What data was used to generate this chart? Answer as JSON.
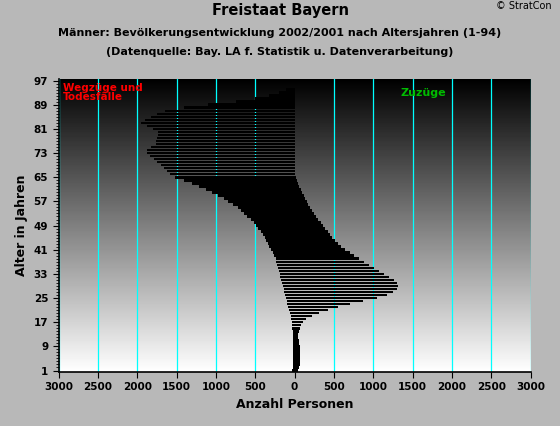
{
  "title": "Freistaat Bayern",
  "subtitle1": "Männer: Bevölkerungsentwicklung 2002/2001 nach Altersjahren (1-94)",
  "subtitle2": "(Datenquelle: Bay. LA f. Statistik u. Datenverarbeitung)",
  "copyright": "© StratCon",
  "xlabel": "Anzahl Personen",
  "ylabel": "Alter in Jahren",
  "xlim": [
    -3000,
    3000
  ],
  "ylim": [
    0.5,
    97.5
  ],
  "yticks": [
    1,
    9,
    17,
    25,
    33,
    41,
    49,
    57,
    65,
    73,
    81,
    89,
    97
  ],
  "xticks": [
    -3000,
    -2500,
    -2000,
    -1500,
    -1000,
    -500,
    0,
    500,
    1000,
    1500,
    2000,
    2500,
    3000
  ],
  "xtick_labels": [
    "3000",
    "2500",
    "2000",
    "1500",
    "1000",
    "500",
    "0",
    "500",
    "1000",
    "1500",
    "2000",
    "2500",
    "3000"
  ],
  "bar_color": "#000000",
  "cyan_line_color": "#00ffff",
  "label_wegzuege": "Wegzüge und",
  "label_todesfaelle": "Todesfälle",
  "label_zugzuege": "Zuzüge",
  "label_color_red": "#ff0000",
  "label_color_green": "#00bb00",
  "ages": [
    1,
    2,
    3,
    4,
    5,
    6,
    7,
    8,
    9,
    10,
    11,
    12,
    13,
    14,
    15,
    16,
    17,
    18,
    19,
    20,
    21,
    22,
    23,
    24,
    25,
    26,
    27,
    28,
    29,
    30,
    31,
    32,
    33,
    34,
    35,
    36,
    37,
    38,
    39,
    40,
    41,
    42,
    43,
    44,
    45,
    46,
    47,
    48,
    49,
    50,
    51,
    52,
    53,
    54,
    55,
    56,
    57,
    58,
    59,
    60,
    61,
    62,
    63,
    64,
    65,
    66,
    67,
    68,
    69,
    70,
    71,
    72,
    73,
    74,
    75,
    76,
    77,
    78,
    79,
    80,
    81,
    82,
    83,
    84,
    85,
    86,
    87,
    88,
    89,
    90,
    91,
    92,
    93,
    94
  ],
  "left_values": [
    -30,
    -25,
    -22,
    -20,
    -20,
    -20,
    -20,
    -20,
    -20,
    -20,
    -22,
    -22,
    -22,
    -25,
    -28,
    -30,
    -35,
    -40,
    -50,
    -60,
    -70,
    -80,
    -90,
    -100,
    -110,
    -120,
    -130,
    -140,
    -150,
    -160,
    -170,
    -180,
    -190,
    -200,
    -210,
    -220,
    -230,
    -240,
    -260,
    -280,
    -300,
    -320,
    -340,
    -360,
    -380,
    -400,
    -430,
    -460,
    -490,
    -520,
    -560,
    -600,
    -640,
    -680,
    -720,
    -780,
    -840,
    -900,
    -970,
    -1050,
    -1130,
    -1220,
    -1310,
    -1410,
    -1520,
    -1580,
    -1620,
    -1660,
    -1700,
    -1750,
    -1790,
    -1840,
    -1880,
    -1870,
    -1820,
    -1760,
    -1760,
    -1750,
    -1730,
    -1740,
    -1800,
    -1870,
    -1950,
    -1900,
    -1820,
    -1750,
    -1650,
    -1400,
    -1100,
    -750,
    -500,
    -320,
    -200,
    -110
  ],
  "right_values": [
    50,
    60,
    65,
    70,
    75,
    75,
    75,
    70,
    65,
    60,
    55,
    50,
    50,
    55,
    65,
    80,
    110,
    150,
    220,
    310,
    430,
    550,
    700,
    870,
    1050,
    1180,
    1250,
    1300,
    1320,
    1300,
    1260,
    1200,
    1140,
    1080,
    1010,
    950,
    880,
    820,
    760,
    700,
    640,
    590,
    550,
    510,
    480,
    450,
    420,
    390,
    360,
    330,
    300,
    275,
    250,
    225,
    200,
    175,
    155,
    135,
    115,
    95,
    78,
    62,
    48,
    35,
    22,
    12,
    8,
    5,
    3,
    2,
    1,
    1,
    0,
    0,
    0,
    0,
    0,
    0,
    0,
    0,
    0,
    0,
    0,
    0,
    0,
    0,
    0,
    0,
    0,
    0,
    0,
    0,
    0,
    0
  ]
}
